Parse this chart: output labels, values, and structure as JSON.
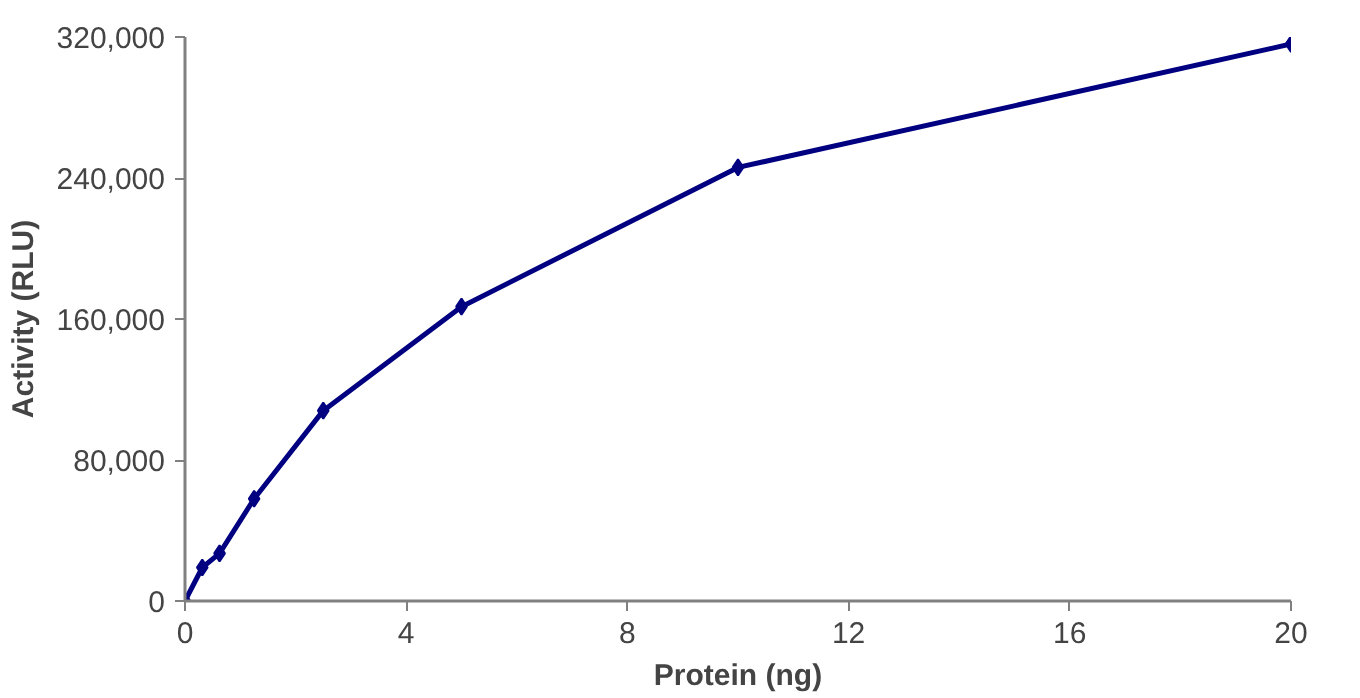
{
  "chart_data": {
    "type": "line",
    "xlabel": "Protein (ng)",
    "ylabel": "Activity (RLU)",
    "x": [
      0,
      0.3125,
      0.625,
      1.25,
      2.5,
      5,
      10,
      20
    ],
    "series": [
      {
        "color": "#000080",
        "values": [
          0,
          19000,
          27000,
          58000,
          108000,
          167000,
          246000,
          316000
        ]
      }
    ],
    "xlim": [
      0,
      20
    ],
    "xticks": [
      0,
      4,
      8,
      12,
      16,
      20
    ],
    "ylim": [
      0,
      320000
    ],
    "yticks": [
      0,
      {
        "value": 80000,
        "label": "80,000"
      },
      {
        "value": 160000,
        "label": "160,000"
      },
      {
        "value": 240000,
        "label": "240,000"
      },
      {
        "value": 320000,
        "label": "320,000"
      }
    ],
    "grid": false,
    "marker": "diamond",
    "line_style": "solid"
  }
}
